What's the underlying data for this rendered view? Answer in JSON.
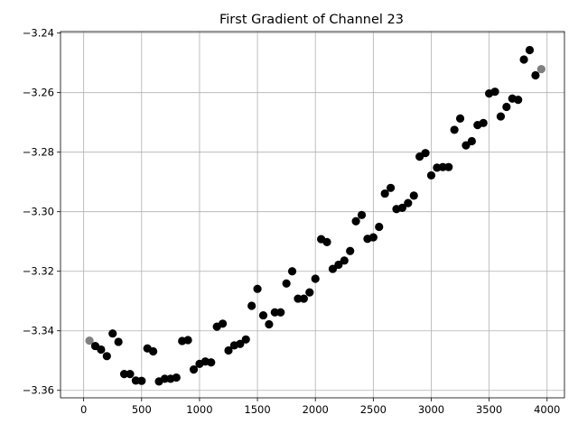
{
  "chart_data": {
    "type": "scatter",
    "title": "First Gradient of Channel 23",
    "xlabel": "",
    "ylabel": "",
    "xlim": [
      -200,
      4150
    ],
    "ylim": [
      -3.3625,
      -3.2395
    ],
    "xticks": [
      0,
      500,
      1000,
      1500,
      2000,
      2500,
      3000,
      3500,
      4000
    ],
    "xtick_labels": [
      "0",
      "500",
      "1000",
      "1500",
      "2000",
      "2500",
      "3000",
      "3500",
      "4000"
    ],
    "yticks": [
      -3.36,
      -3.34,
      -3.32,
      -3.3,
      -3.28,
      -3.26,
      -3.24
    ],
    "ytick_labels": [
      "−3.36",
      "−3.34",
      "−3.32",
      "−3.30",
      "−3.28",
      "−3.26",
      "−3.24"
    ],
    "grid": true,
    "colors": {
      "main": "#000000",
      "endpoint": "#808080",
      "grid": "#b0b0b0"
    },
    "x": [
      50,
      100,
      150,
      200,
      250,
      300,
      350,
      400,
      450,
      500,
      550,
      600,
      650,
      700,
      750,
      800,
      850,
      900,
      950,
      1000,
      1050,
      1100,
      1150,
      1200,
      1250,
      1300,
      1350,
      1400,
      1450,
      1500,
      1550,
      1600,
      1650,
      1700,
      1750,
      1800,
      1850,
      1900,
      1950,
      2000,
      2050,
      2100,
      2150,
      2200,
      2250,
      2300,
      2350,
      2400,
      2450,
      2500,
      2550,
      2600,
      2650,
      2700,
      2750,
      2800,
      2850,
      2900,
      2950,
      3000,
      3050,
      3100,
      3150,
      3200,
      3250,
      3300,
      3350,
      3400,
      3450,
      3500,
      3550,
      3600,
      3650,
      3700,
      3750,
      3800,
      3850,
      3900,
      3950
    ],
    "y": [
      -3.3433,
      -3.3451,
      -3.3463,
      -3.3485,
      -3.3409,
      -3.3437,
      -3.3545,
      -3.3545,
      -3.3567,
      -3.3568,
      -3.3459,
      -3.3469,
      -3.357,
      -3.3561,
      -3.3561,
      -3.3557,
      -3.3434,
      -3.3431,
      -3.353,
      -3.3511,
      -3.3503,
      -3.3506,
      -3.3386,
      -3.3376,
      -3.3466,
      -3.3449,
      -3.3444,
      -3.3429,
      -3.3316,
      -3.3259,
      -3.3348,
      -3.3378,
      -3.3338,
      -3.3338,
      -3.3241,
      -3.32,
      -3.3292,
      -3.3292,
      -3.3271,
      -3.3225,
      -3.3092,
      -3.3102,
      -3.3192,
      -3.3178,
      -3.3164,
      -3.3132,
      -3.3032,
      -3.3011,
      -3.3091,
      -3.3086,
      -3.3051,
      -3.2939,
      -3.292,
      -3.2991,
      -3.2987,
      -3.2971,
      -3.2946,
      -3.2815,
      -3.2803,
      -3.2878,
      -3.2852,
      -3.285,
      -3.285,
      -3.2725,
      -3.2687,
      -3.2777,
      -3.2763,
      -3.2709,
      -3.2702,
      -3.2603,
      -3.2597,
      -3.268,
      -3.2648,
      -3.262,
      -3.2624,
      -3.2489,
      -3.2457,
      -3.2542,
      -3.2521
    ],
    "point_colors": [
      "endpoint",
      "main",
      "main",
      "main",
      "main",
      "main",
      "main",
      "main",
      "main",
      "main",
      "main",
      "main",
      "main",
      "main",
      "main",
      "main",
      "main",
      "main",
      "main",
      "main",
      "main",
      "main",
      "main",
      "main",
      "main",
      "main",
      "main",
      "main",
      "main",
      "main",
      "main",
      "main",
      "main",
      "main",
      "main",
      "main",
      "main",
      "main",
      "main",
      "main",
      "main",
      "main",
      "main",
      "main",
      "main",
      "main",
      "main",
      "main",
      "main",
      "main",
      "main",
      "main",
      "main",
      "main",
      "main",
      "main",
      "main",
      "main",
      "main",
      "main",
      "main",
      "main",
      "main",
      "main",
      "main",
      "main",
      "main",
      "main",
      "main",
      "main",
      "main",
      "main",
      "main",
      "main",
      "main",
      "main",
      "main",
      "main",
      "endpoint"
    ]
  }
}
